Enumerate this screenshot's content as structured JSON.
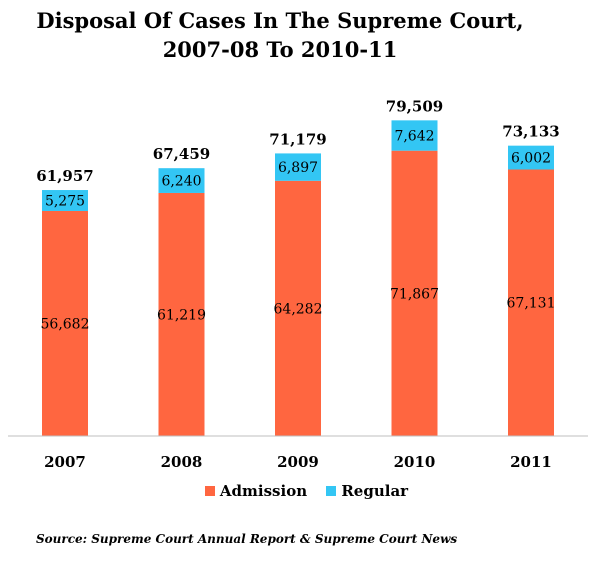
{
  "chart_data": {
    "type": "bar",
    "stacked": true,
    "title": [
      "Disposal Of Cases In The Supreme Court,",
      "2007-08 To 2010-11"
    ],
    "categories": [
      "2007",
      "2008",
      "2009",
      "2010",
      "2011"
    ],
    "series": [
      {
        "name": "Admission",
        "color": "#ff6640",
        "values": [
          56682,
          61219,
          64282,
          71867,
          67131
        ],
        "labels": [
          "56,682",
          "61,219",
          "64,282",
          "71,867",
          "67,131"
        ]
      },
      {
        "name": "Regular",
        "color": "#33c6f4",
        "values": [
          5275,
          6240,
          6897,
          7642,
          6002
        ],
        "labels": [
          "5,275",
          "6,240",
          "6,897",
          "7,642",
          "6,002"
        ]
      }
    ],
    "totals": [
      61957,
      67459,
      71179,
      79509,
      73133
    ],
    "total_labels": [
      "61,957",
      "67,459",
      "71,179",
      "79,509",
      "73,133"
    ],
    "ylim": [
      0,
      85000
    ],
    "legend_position": "bottom",
    "grid": false,
    "source": "Source: Supreme Court Annual Report & Supreme Court News"
  }
}
